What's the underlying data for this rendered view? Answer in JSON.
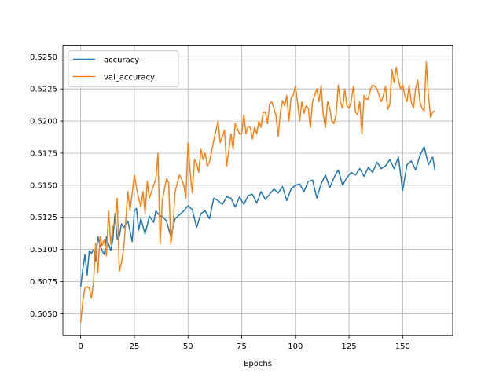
{
  "chart_data": {
    "type": "line",
    "title": "",
    "xlabel": "Epochs",
    "ylabel": "",
    "xlim": [
      -8.3,
      173.3
    ],
    "ylim": [
      0.5033,
      0.5259
    ],
    "xticks": [
      0,
      25,
      50,
      75,
      100,
      125,
      150
    ],
    "yticks": [
      0.505,
      0.5075,
      0.51,
      0.5125,
      0.515,
      0.5175,
      0.52,
      0.5225,
      0.525
    ],
    "ytick_labels": [
      "0.5050",
      "0.5075",
      "0.5100",
      "0.5125",
      "0.5150",
      "0.5175",
      "0.5200",
      "0.5225",
      "0.5250"
    ],
    "grid": true,
    "legend_position": "upper-left",
    "series": [
      {
        "name": "accuracy",
        "color": "#1f77b4",
        "anchors": [
          [
            0,
            0.5071
          ],
          [
            1,
            0.5085
          ],
          [
            2,
            0.5096
          ],
          [
            3,
            0.508
          ],
          [
            4,
            0.5099
          ],
          [
            5,
            0.5097
          ],
          [
            6,
            0.51
          ],
          [
            7,
            0.5091
          ],
          [
            8,
            0.511
          ],
          [
            9,
            0.5103
          ],
          [
            10,
            0.5099
          ],
          [
            11,
            0.5096
          ],
          [
            12,
            0.511
          ],
          [
            13,
            0.5104
          ],
          [
            14,
            0.5099
          ],
          [
            15,
            0.5108
          ],
          [
            16,
            0.5128
          ],
          [
            17,
            0.5108
          ],
          [
            18,
            0.511
          ],
          [
            19,
            0.512
          ],
          [
            20,
            0.5117
          ],
          [
            22,
            0.5122
          ],
          [
            24,
            0.5106
          ],
          [
            25,
            0.513
          ],
          [
            26,
            0.5132
          ],
          [
            27,
            0.5115
          ],
          [
            28,
            0.5124
          ],
          [
            29,
            0.5118
          ],
          [
            30,
            0.5112
          ],
          [
            32,
            0.5126
          ],
          [
            34,
            0.5121
          ],
          [
            35,
            0.513
          ],
          [
            37,
            0.5126
          ],
          [
            38,
            0.5126
          ],
          [
            40,
            0.5122
          ],
          [
            42,
            0.511
          ],
          [
            44,
            0.5124
          ],
          [
            46,
            0.5127
          ],
          [
            48,
            0.513
          ],
          [
            50,
            0.5134
          ],
          [
            52,
            0.5131
          ],
          [
            54,
            0.5117
          ],
          [
            56,
            0.5128
          ],
          [
            58,
            0.513
          ],
          [
            60,
            0.5124
          ],
          [
            62,
            0.514
          ],
          [
            64,
            0.5138
          ],
          [
            66,
            0.5135
          ],
          [
            68,
            0.5141
          ],
          [
            70,
            0.514
          ],
          [
            72,
            0.5133
          ],
          [
            74,
            0.5141
          ],
          [
            76,
            0.5135
          ],
          [
            78,
            0.5142
          ],
          [
            80,
            0.5143
          ],
          [
            82,
            0.5136
          ],
          [
            84,
            0.5145
          ],
          [
            86,
            0.5139
          ],
          [
            88,
            0.5143
          ],
          [
            90,
            0.5147
          ],
          [
            92,
            0.5144
          ],
          [
            94,
            0.5149
          ],
          [
            96,
            0.5138
          ],
          [
            98,
            0.5147
          ],
          [
            100,
            0.515
          ],
          [
            102,
            0.5151
          ],
          [
            104,
            0.5145
          ],
          [
            106,
            0.5153
          ],
          [
            108,
            0.5154
          ],
          [
            110,
            0.514
          ],
          [
            112,
            0.5151
          ],
          [
            114,
            0.5158
          ],
          [
            116,
            0.5148
          ],
          [
            118,
            0.5156
          ],
          [
            120,
            0.5162
          ],
          [
            122,
            0.515
          ],
          [
            124,
            0.5156
          ],
          [
            126,
            0.516
          ],
          [
            128,
            0.5158
          ],
          [
            130,
            0.5163
          ],
          [
            132,
            0.5157
          ],
          [
            134,
            0.5164
          ],
          [
            136,
            0.516
          ],
          [
            138,
            0.5168
          ],
          [
            140,
            0.5163
          ],
          [
            142,
            0.5165
          ],
          [
            144,
            0.517
          ],
          [
            146,
            0.5163
          ],
          [
            148,
            0.5172
          ],
          [
            150,
            0.5146
          ],
          [
            152,
            0.5166
          ],
          [
            154,
            0.5169
          ],
          [
            156,
            0.5162
          ],
          [
            158,
            0.5173
          ],
          [
            160,
            0.518
          ],
          [
            162,
            0.5166
          ],
          [
            164,
            0.5172
          ],
          [
            165,
            0.5162
          ]
        ]
      },
      {
        "name": "val_accuracy",
        "color": "#ff7f0e",
        "anchors": [
          [
            0,
            0.5043
          ],
          [
            1,
            0.506
          ],
          [
            2,
            0.507
          ],
          [
            3,
            0.5071
          ],
          [
            4,
            0.507
          ],
          [
            5,
            0.5062
          ],
          [
            6,
            0.5075
          ],
          [
            7,
            0.5105
          ],
          [
            8,
            0.5082
          ],
          [
            9,
            0.511
          ],
          [
            10,
            0.5103
          ],
          [
            11,
            0.5108
          ],
          [
            12,
            0.5095
          ],
          [
            13,
            0.513
          ],
          [
            14,
            0.5104
          ],
          [
            15,
            0.5118
          ],
          [
            16,
            0.512
          ],
          [
            17,
            0.514
          ],
          [
            18,
            0.5083
          ],
          [
            19,
            0.509
          ],
          [
            20,
            0.51
          ],
          [
            22,
            0.5145
          ],
          [
            23,
            0.513
          ],
          [
            25,
            0.5158
          ],
          [
            26,
            0.5148
          ],
          [
            27,
            0.514
          ],
          [
            28,
            0.5133
          ],
          [
            29,
            0.5145
          ],
          [
            30,
            0.5128
          ],
          [
            31,
            0.5153
          ],
          [
            32,
            0.514
          ],
          [
            33,
            0.5145
          ],
          [
            35,
            0.5155
          ],
          [
            36,
            0.5175
          ],
          [
            37,
            0.5104
          ],
          [
            38,
            0.5138
          ],
          [
            40,
            0.5155
          ],
          [
            41,
            0.5152
          ],
          [
            42,
            0.5104
          ],
          [
            43,
            0.5118
          ],
          [
            44,
            0.5145
          ],
          [
            46,
            0.5158
          ],
          [
            47,
            0.5155
          ],
          [
            48,
            0.515
          ],
          [
            49,
            0.514
          ],
          [
            50,
            0.5183
          ],
          [
            51,
            0.516
          ],
          [
            52,
            0.5144
          ],
          [
            53,
            0.517
          ],
          [
            54,
            0.5167
          ],
          [
            55,
            0.516
          ],
          [
            56,
            0.5178
          ],
          [
            57,
            0.517
          ],
          [
            58,
            0.5175
          ],
          [
            59,
            0.5165
          ],
          [
            60,
            0.5168
          ],
          [
            62,
            0.5185
          ],
          [
            64,
            0.52
          ],
          [
            65,
            0.5183
          ],
          [
            66,
            0.5188
          ],
          [
            67,
            0.5193
          ],
          [
            68,
            0.5165
          ],
          [
            69,
            0.5177
          ],
          [
            70,
            0.519
          ],
          [
            71,
            0.5178
          ],
          [
            72,
            0.5198
          ],
          [
            74,
            0.519
          ],
          [
            75,
            0.519
          ],
          [
            76,
            0.5205
          ],
          [
            77,
            0.519
          ],
          [
            78,
            0.5196
          ],
          [
            79,
            0.5195
          ],
          [
            80,
            0.5186
          ],
          [
            81,
            0.5195
          ],
          [
            82,
            0.519
          ],
          [
            83,
            0.52
          ],
          [
            84,
            0.5195
          ],
          [
            85,
            0.5207
          ],
          [
            86,
            0.5207
          ],
          [
            87,
            0.5198
          ],
          [
            88,
            0.5213
          ],
          [
            89,
            0.5215
          ],
          [
            90,
            0.521
          ],
          [
            91,
            0.5204
          ],
          [
            92,
            0.5188
          ],
          [
            93,
            0.5206
          ],
          [
            94,
            0.5216
          ],
          [
            95,
            0.5212
          ],
          [
            96,
            0.522
          ],
          [
            97,
            0.52
          ],
          [
            98,
            0.5218
          ],
          [
            99,
            0.522
          ],
          [
            100,
            0.5227
          ],
          [
            101,
            0.5215
          ],
          [
            102,
            0.52
          ],
          [
            103,
            0.5215
          ],
          [
            104,
            0.5206
          ],
          [
            105,
            0.5212
          ],
          [
            106,
            0.521
          ],
          [
            107,
            0.5195
          ],
          [
            108,
            0.5215
          ],
          [
            109,
            0.522
          ],
          [
            110,
            0.5225
          ],
          [
            111,
            0.5215
          ],
          [
            112,
            0.5228
          ],
          [
            113,
            0.5205
          ],
          [
            114,
            0.5195
          ],
          [
            115,
            0.5215
          ],
          [
            116,
            0.521
          ],
          [
            117,
            0.52
          ],
          [
            118,
            0.5198
          ],
          [
            119,
            0.5205
          ],
          [
            120,
            0.5228
          ],
          [
            121,
            0.5215
          ],
          [
            122,
            0.521
          ],
          [
            123,
            0.5225
          ],
          [
            124,
            0.5212
          ],
          [
            125,
            0.521
          ],
          [
            126,
            0.5215
          ],
          [
            127,
            0.5227
          ],
          [
            128,
            0.5207
          ],
          [
            129,
            0.5205
          ],
          [
            130,
            0.5215
          ],
          [
            131,
            0.519
          ],
          [
            132,
            0.522
          ],
          [
            133,
            0.5217
          ],
          [
            134,
            0.5217
          ],
          [
            135,
            0.5225
          ],
          [
            136,
            0.5228
          ],
          [
            137,
            0.5227
          ],
          [
            138,
            0.5225
          ],
          [
            139,
            0.522
          ],
          [
            140,
            0.5215
          ],
          [
            141,
            0.522
          ],
          [
            142,
            0.5227
          ],
          [
            143,
            0.5209
          ],
          [
            144,
            0.5213
          ],
          [
            145,
            0.524
          ],
          [
            146,
            0.523
          ],
          [
            147,
            0.5242
          ],
          [
            148,
            0.5232
          ],
          [
            149,
            0.5225
          ],
          [
            150,
            0.5228
          ],
          [
            151,
            0.522
          ],
          [
            152,
            0.5215
          ],
          [
            153,
            0.5228
          ],
          [
            154,
            0.5215
          ],
          [
            155,
            0.521
          ],
          [
            156,
            0.5225
          ],
          [
            157,
            0.5232
          ],
          [
            158,
            0.5215
          ],
          [
            159,
            0.521
          ],
          [
            160,
            0.5208
          ],
          [
            161,
            0.5246
          ],
          [
            162,
            0.522
          ],
          [
            163,
            0.5203
          ],
          [
            164,
            0.5207
          ],
          [
            165,
            0.5208
          ]
        ]
      }
    ]
  }
}
